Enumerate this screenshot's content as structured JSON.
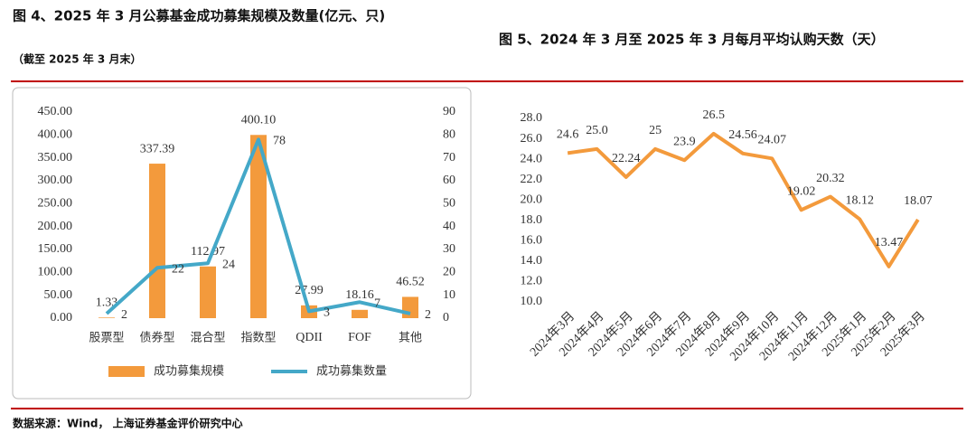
{
  "chart_data": [
    {
      "type": "bar",
      "title": "图 4、2025 年 3 月公募基金成功募集规模及数量(亿元、只)",
      "subtitle": "（截至 2025 年 3 月末）",
      "categories": [
        "股票型",
        "债券型",
        "混合型",
        "指数型",
        "QDII",
        "FOF",
        "其他"
      ],
      "series": [
        {
          "name": "成功募集规模",
          "type": "bar",
          "color": "#f39a3c",
          "values": [
            1.33,
            337.39,
            112.97,
            400.1,
            27.99,
            18.16,
            46.52
          ],
          "value_labels": [
            "1.33",
            "337.39",
            "112.97",
            "400.10",
            "27.99",
            "18.16",
            "46.52"
          ]
        },
        {
          "name": "成功募集数量",
          "type": "line",
          "axis": "y2",
          "color": "#44a8c8",
          "values": [
            2,
            22,
            24,
            78,
            3,
            7,
            2
          ]
        }
      ],
      "ylim": [
        0,
        450
      ],
      "yticks": [
        {
          "value": 0,
          "label": "0.00"
        },
        {
          "value": 50,
          "label": "50.00"
        },
        {
          "value": 100,
          "label": "100.00"
        },
        {
          "value": 150,
          "label": "150.00"
        },
        {
          "value": 200,
          "label": "200.00"
        },
        {
          "value": 250,
          "label": "250.00"
        },
        {
          "value": 300,
          "label": "300.00"
        },
        {
          "value": 350,
          "label": "350.00"
        },
        {
          "value": 400,
          "label": "400.00"
        },
        {
          "value": 450,
          "label": "450.00"
        }
      ],
      "y2lim": [
        0,
        90
      ],
      "y2ticks": [
        0,
        10,
        20,
        30,
        40,
        50,
        60,
        70,
        80,
        90
      ]
    },
    {
      "type": "line",
      "title": "图 5、2024 年 3 月至 2025 年 3 月每月平均认购天数（天）",
      "categories": [
        "2024年3月",
        "2024年4月",
        "2024年5月",
        "2024年6月",
        "2024年7月",
        "2024年8月",
        "2024年9月",
        "2024年10月",
        "2024年11月",
        "2024年12月",
        "2025年1月",
        "2025年2月",
        "2025年3月"
      ],
      "series": [
        {
          "name": "每月平均认购天数",
          "color": "#f39a3c",
          "values": [
            24.6,
            25,
            22.24,
            25,
            23.9,
            26.5,
            24.56,
            24.07,
            19.02,
            20.32,
            18.12,
            13.47,
            18.07
          ],
          "value_labels": [
            "24.6",
            "25.0",
            "22.24",
            "25",
            "23.9",
            "26.5",
            "24.56",
            "24.07",
            "19.02",
            "20.32",
            "18.12",
            "13.47",
            "18.07"
          ]
        }
      ],
      "ylim": [
        10,
        28
      ],
      "yticks": [
        {
          "value": 10,
          "label": "10.0"
        },
        {
          "value": 12,
          "label": "12.0"
        },
        {
          "value": 14,
          "label": "14.0"
        },
        {
          "value": 16,
          "label": "16.0"
        },
        {
          "value": 18,
          "label": "18.0"
        },
        {
          "value": 20,
          "label": "20.0"
        },
        {
          "value": 22,
          "label": "22.0"
        },
        {
          "value": 24,
          "label": "24.0"
        },
        {
          "value": 26,
          "label": "26.0"
        },
        {
          "value": 28,
          "label": "28.0"
        }
      ]
    }
  ],
  "source": "数据来源：Wind， 上海证券基金评价研究中心"
}
